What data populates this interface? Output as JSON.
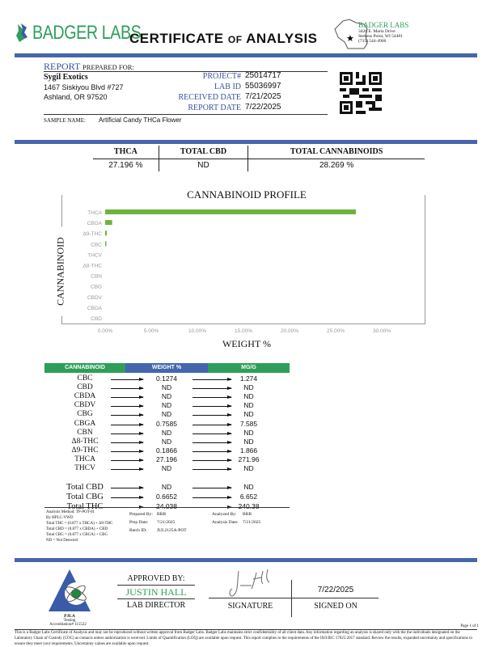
{
  "header": {
    "logo_text": "BADGER LABS",
    "title_a": "CERTIFICATE",
    "title_of": "of",
    "title_b": "ANALYSIS",
    "lab": {
      "name": "BADGER LABS",
      "address1": "3426 E. Maria Drive",
      "address2": "Stevens Point, WI 54481",
      "phone": "(715) 544-4900"
    }
  },
  "report": {
    "label_a": "REPORT",
    "label_b": "PREPARED FOR:",
    "client": {
      "name": "Sygil Exotics",
      "address1": "1467 Siskiyou Blvd #727",
      "address2": "Ashland, OR 97520"
    },
    "fields": [
      {
        "label": "PROJECT#",
        "value": "25014717"
      },
      {
        "label": "LAB ID",
        "value": "55036997"
      },
      {
        "label": "RECEIVED DATE",
        "value": "7/21/2025"
      },
      {
        "label": "REPORT DATE",
        "value": "7/22/2025"
      }
    ],
    "sample_label": "SAMPLE NAME:",
    "sample_name": "Artificial Candy THCa Flower"
  },
  "summary": {
    "headers": [
      "THCA",
      "TOTAL CBD",
      "TOTAL CANNABINOIDS"
    ],
    "values": [
      "27.196 %",
      "ND",
      "28.269 %"
    ]
  },
  "chart_data": {
    "type": "bar",
    "orientation": "horizontal",
    "title": "CANNABINOID PROFILE",
    "xlabel": "WEIGHT %",
    "ylabel": "CANNABINOID",
    "categories": [
      "THCA",
      "CBGA",
      "Δ9-THC",
      "CBC",
      "THCV",
      "Δ8-THC",
      "CBN",
      "CBG",
      "CBDV",
      "CBDA",
      "CBD"
    ],
    "values": [
      27.196,
      0.7585,
      0.1866,
      0.1274,
      0,
      0,
      0,
      0,
      0,
      0,
      0
    ],
    "xlim": [
      0,
      30
    ],
    "xticks": [
      "0.00%",
      "5.00%",
      "10.00%",
      "15.00%",
      "20.00%",
      "25.00%",
      "30.00%"
    ],
    "grid": false,
    "color": "#6db33f"
  },
  "results": {
    "headers": [
      "CANNABINOID",
      "WEIGHT %",
      "MG/G"
    ],
    "rows": [
      [
        "CBC",
        "0.1274",
        "1.274"
      ],
      [
        "CBD",
        "ND",
        "ND"
      ],
      [
        "CBDA",
        "ND",
        "ND"
      ],
      [
        "CBDV",
        "ND",
        "ND"
      ],
      [
        "CBG",
        "ND",
        "ND"
      ],
      [
        "CBGA",
        "0.7585",
        "7.585"
      ],
      [
        "CBN",
        "ND",
        "ND"
      ],
      [
        "Δ8-THC",
        "ND",
        "ND"
      ],
      [
        "Δ9-THC",
        "0.1866",
        "1.866"
      ],
      [
        "THCA",
        "27.196",
        "271.96"
      ],
      [
        "THCV",
        "ND",
        "ND"
      ]
    ],
    "totals": [
      [
        "Total CBD",
        "ND",
        "ND"
      ],
      [
        "Total CBG",
        "0.6652",
        "6.652"
      ],
      [
        "Total THC",
        "24.038",
        "240.38"
      ]
    ]
  },
  "notes": {
    "method": [
      "Analysis Method: TP-POT-01",
      "By HPLC-VWD",
      "Total THC = (0.877 x THCA) + Δ9-THC",
      "Total CBD = (0.877 x CBDA) + CBD",
      "Total CBG = (0.877 x CBGA) + CBG",
      "ND = Not Detected"
    ],
    "prepared_by_label": "Prepared By:",
    "prepared_by": "BRB",
    "prep_date_label": "Prep Date:",
    "prep_date": "7/21/2025",
    "batch_label": "Batch ID:",
    "batch": "JUL2125A-POT",
    "analyzed_by_label": "Analyzed By:",
    "analyzed_by": "BRB",
    "analysis_date_label": "Analysis Date:",
    "analysis_date": "7/21/2025"
  },
  "footer": {
    "pjla": "PJLA",
    "testing": "Testing",
    "accreditation": "Accreditation# 115522",
    "approved_by": "APPROVED BY:",
    "director_name": "JUSTIN HALL",
    "director_title": "LAB DIRECTOR",
    "signature_label": "SIGNATURE",
    "signed_date": "7/22/2025",
    "signed_on": "SIGNED ON",
    "page": "Page 1 of 1",
    "disclaimer": "This is a Badger Labs Certificate of Analysis and may not be reproduced without written approval from Badger Labs. Badger Labs maintains strict confidentiality of all client data. Any information regarding an analysis is shared only with the the individuals designated on the Laboratory Chain of Custody (COC) as contacts unless authorization is received. Limits of Quantification (LOQ) are available upon request. This report complies to the requirements of the ISO/IEC 17025:2017 standard. Review the results, expanded uncertainty and specifications to ensure they meet your requirements. Uncertainty values are available upon request."
  }
}
